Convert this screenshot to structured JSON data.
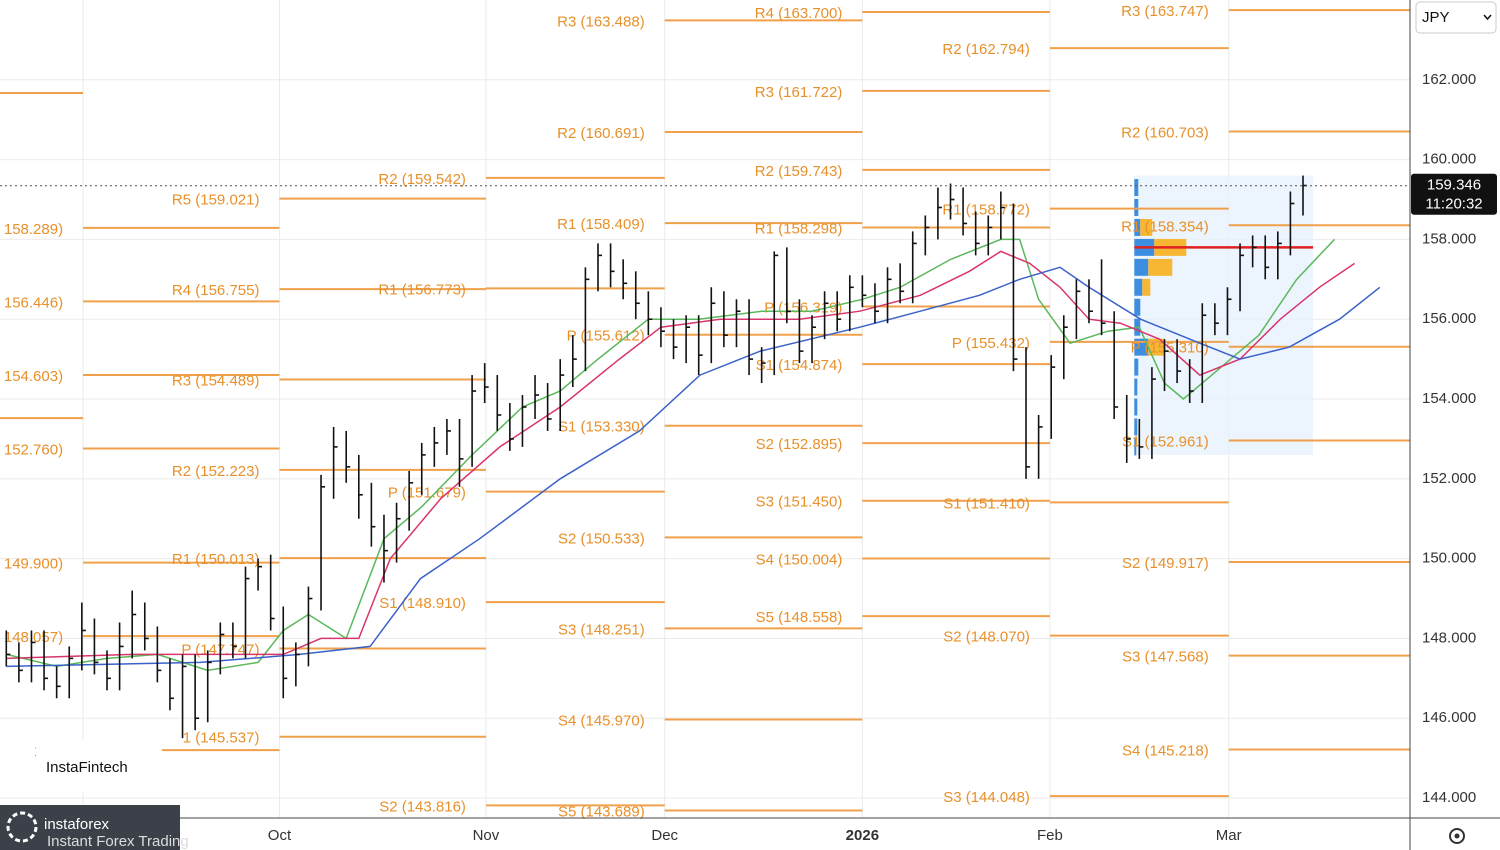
{
  "chart_data": {
    "type": "ohlc",
    "color": "#111111",
    "xlim": [
      -0.5,
      111.5
    ],
    "ylim": [
      143.5,
      164.0
    ],
    "xticks": [
      {
        "value": 6.1,
        "label": null
      },
      {
        "value": 21.7,
        "label": "Oct"
      },
      {
        "value": 38.1,
        "label": "Nov"
      },
      {
        "value": 52.3,
        "label": "Dec"
      },
      {
        "value": 68.0,
        "label": "2026"
      },
      {
        "value": 82.9,
        "label": "Feb"
      },
      {
        "value": 97.1,
        "label": "Mar"
      }
    ],
    "yticks": [
      {
        "value": 144,
        "label": "144.000"
      },
      {
        "value": 146,
        "label": "146.000"
      },
      {
        "value": 148,
        "label": "148.000"
      },
      {
        "value": 150,
        "label": "150.000"
      },
      {
        "value": 152,
        "label": "152.000"
      },
      {
        "value": 154,
        "label": "154.000"
      },
      {
        "value": 156,
        "label": "156.000"
      },
      {
        "value": 158,
        "label": "158.000"
      },
      {
        "value": 160,
        "label": "160.000"
      },
      {
        "value": 162,
        "label": "162.000"
      }
    ],
    "grid": true,
    "high": [
      148.2,
      147.9,
      148.2,
      148.2,
      147.3,
      147.8,
      148.9,
      148.5,
      147.7,
      148.4,
      149.2,
      148.9,
      148.3,
      147.5,
      147.6,
      147.6,
      147.7,
      148.4,
      148.4,
      149.8,
      150.0,
      150.1,
      148.8,
      147.9,
      149.3,
      152.1,
      153.3,
      153.2,
      152.6,
      151.9,
      151.1,
      151.4,
      152.2,
      152.9,
      153.3,
      153.5,
      153.5,
      154.6,
      154.9,
      154.6,
      153.9,
      154.1,
      154.6,
      154.4,
      155.0,
      155.6,
      157.3,
      157.9,
      157.9,
      157.5,
      157.2,
      156.7,
      156.3,
      156.0,
      156.1,
      156.1,
      156.8,
      156.7,
      156.5,
      156.5,
      155.3,
      157.7,
      157.8,
      156.5,
      156.1,
      156.7,
      156.7,
      157.1,
      157.1,
      156.9,
      157.3,
      157.4,
      158.2,
      158.6,
      159.3,
      159.4,
      159.3,
      158.7,
      158.6,
      159.2,
      158.9,
      155.3,
      153.6,
      155.1,
      156.1,
      157.0,
      157.0,
      157.5,
      156.2,
      154.1,
      153.5,
      154.8,
      155.5,
      155.5,
      155.0,
      156.4,
      156.4,
      156.8,
      157.9,
      158.1,
      158.1,
      158.2,
      159.2,
      159.6
    ],
    "low": [
      147.3,
      146.9,
      146.9,
      146.7,
      146.5,
      146.5,
      147.2,
      147.1,
      146.7,
      146.7,
      147.5,
      147.7,
      146.9,
      146.2,
      145.5,
      145.7,
      145.9,
      147.1,
      147.5,
      147.5,
      149.2,
      148.2,
      146.5,
      146.8,
      147.3,
      148.7,
      151.5,
      151.9,
      151.0,
      150.3,
      149.4,
      149.9,
      150.7,
      151.6,
      152.3,
      152.6,
      151.8,
      152.3,
      153.9,
      153.2,
      152.7,
      152.8,
      153.5,
      153.2,
      153.2,
      154.3,
      154.7,
      156.7,
      156.8,
      156.5,
      156.0,
      155.6,
      155.3,
      155.0,
      154.9,
      154.6,
      154.9,
      155.3,
      155.3,
      154.6,
      154.4,
      154.6,
      155.9,
      154.9,
      154.9,
      155.5,
      155.7,
      155.7,
      156.3,
      155.9,
      155.9,
      156.4,
      156.4,
      157.6,
      158.0,
      158.5,
      158.1,
      157.6,
      157.6,
      158.0,
      154.7,
      152.0,
      152.0,
      153.0,
      154.5,
      155.5,
      155.9,
      155.6,
      153.5,
      152.4,
      152.5,
      152.5,
      154.2,
      154.4,
      153.9,
      153.9,
      155.6,
      155.6,
      156.2,
      157.3,
      157.0,
      157.0,
      157.6,
      158.6
    ],
    "close": [
      147.6,
      147.2,
      147.9,
      147.0,
      146.8,
      147.5,
      148.2,
      147.4,
      147.0,
      147.8,
      148.6,
      148.0,
      147.2,
      146.5,
      147.3,
      146.0,
      147.4,
      148.1,
      147.8,
      149.5,
      149.8,
      148.5,
      147.0,
      147.6,
      149.0,
      151.8,
      152.8,
      152.3,
      151.6,
      150.8,
      150.2,
      151.0,
      151.9,
      152.6,
      152.9,
      153.2,
      152.5,
      154.2,
      154.3,
      153.6,
      153.0,
      153.8,
      154.1,
      153.5,
      154.6,
      155.0,
      157.0,
      157.6,
      157.2,
      156.9,
      156.4,
      156.0,
      155.7,
      155.3,
      155.8,
      155.1,
      156.4,
      155.6,
      156.2,
      155.0,
      154.9,
      157.6,
      156.2,
      155.2,
      155.8,
      156.4,
      156.0,
      156.8,
      156.6,
      156.2,
      157.0,
      156.7,
      157.9,
      158.3,
      158.8,
      159.0,
      158.4,
      157.9,
      158.3,
      158.8,
      155.0,
      152.3,
      153.3,
      154.8,
      155.8,
      156.7,
      156.2,
      155.9,
      153.8,
      153.0,
      152.8,
      154.5,
      155.2,
      154.7,
      154.2,
      156.1,
      155.9,
      156.5,
      157.6,
      157.8,
      157.3,
      157.9,
      158.9,
      159.35
    ],
    "series": [
      {
        "color": "#5cb85c",
        "x": [
          0,
          4,
          8,
          12,
          16,
          20,
          22,
          24,
          27,
          30,
          33,
          37,
          41,
          44,
          47,
          51,
          55,
          60,
          64,
          68,
          71,
          75,
          79,
          80.5,
          82,
          84.5,
          87.5,
          90,
          92,
          93.5,
          96.5,
          99.5,
          102.5,
          105.5
        ],
        "values": [
          147.6,
          147.3,
          147.5,
          147.6,
          147.2,
          147.4,
          148.2,
          148.6,
          148.0,
          150.5,
          151.3,
          152.6,
          153.8,
          154.2,
          155.0,
          156.0,
          156.0,
          156.2,
          156.2,
          156.5,
          156.8,
          157.5,
          158.0,
          158.0,
          156.5,
          155.4,
          155.7,
          155.8,
          154.4,
          154.0,
          154.8,
          155.6,
          157.0,
          158.0
        ]
      },
      {
        "color": "#d9356b",
        "x": [
          0,
          10,
          22,
          25,
          28,
          30.5,
          34.5,
          39.2,
          44,
          48.7,
          52,
          56.7,
          63,
          67.8,
          72.6,
          76.5,
          79,
          81.3,
          83.7,
          86,
          88.5,
          91.6,
          94.8,
          98,
          101.2,
          104.3,
          107.1
        ],
        "values": [
          147.5,
          147.6,
          147.6,
          148.0,
          148.0,
          150.0,
          151.5,
          152.8,
          153.8,
          155.0,
          155.8,
          156.0,
          156.0,
          156.2,
          156.6,
          157.2,
          157.7,
          157.4,
          156.8,
          156.0,
          155.9,
          155.5,
          154.6,
          155.0,
          156.0,
          156.8,
          157.4
        ]
      },
      {
        "color": "#3b62c9",
        "x": [
          0,
          15.4,
          23.3,
          28.9,
          32.9,
          37.6,
          44,
          50.3,
          55.1,
          59.9,
          67.8,
          72.6,
          77.3,
          80.5,
          83.7,
          86,
          90.1,
          94.8,
          98,
          101.9,
          105.9,
          109.1
        ],
        "values": [
          147.3,
          147.4,
          147.6,
          147.8,
          149.5,
          150.5,
          152.0,
          153.2,
          154.6,
          155.2,
          155.8,
          156.2,
          156.6,
          157.0,
          157.3,
          156.8,
          156.0,
          155.4,
          155.0,
          155.3,
          156.0,
          156.8
        ]
      }
    ],
    "pivot_color": "#f0a04b",
    "pivot_label_color": "#e8902a",
    "pivots": [
      {
        "x": [
          -0.5,
          6.1
        ],
        "levels": [
          {
            "label": null,
            "value": 161.67
          },
          {
            "label": null,
            "value": 153.52
          }
        ]
      },
      {
        "x": [
          6.1,
          21.7
        ],
        "levels": [
          {
            "label": "158.289)",
            "value": 158.289
          },
          {
            "label": "156.446)",
            "value": 156.446
          },
          {
            "label": "154.603)",
            "value": 154.603
          },
          {
            "label": "152.760)",
            "value": 152.76
          },
          {
            "label": "149.900)",
            "value": 149.9
          },
          {
            "label": "148.057)",
            "value": 148.057
          },
          {
            "label": "145.",
            "value": 145.2
          }
        ]
      },
      {
        "x": [
          21.7,
          38.1
        ],
        "levels": [
          {
            "label": "R5 (159.021)",
            "value": 159.021
          },
          {
            "label": "R4 (156.755)",
            "value": 156.755
          },
          {
            "label": "R3 (154.489)",
            "value": 154.489
          },
          {
            "label": "R2 (152.223)",
            "value": 152.223
          },
          {
            "label": "R1 (150.013)",
            "value": 150.013
          },
          {
            "label": "P (147.747)",
            "value": 147.747
          },
          {
            "label": "1 (145.537)",
            "value": 145.537
          }
        ]
      },
      {
        "x": [
          38.1,
          52.3
        ],
        "levels": [
          {
            "label": "R2 (159.542)",
            "value": 159.542
          },
          {
            "label": "R1 (156.773)",
            "value": 156.773
          },
          {
            "label": "P (151.679)",
            "value": 151.679
          },
          {
            "label": "S1 (148.910)",
            "value": 148.91
          },
          {
            "label": "S2 (143.816)",
            "value": 143.816
          }
        ]
      },
      {
        "x": [
          52.3,
          68.0
        ],
        "levels": [
          {
            "label": "R3 (163.488)",
            "value": 163.488
          },
          {
            "label": "R2 (160.691)",
            "value": 160.691
          },
          {
            "label": "R1 (158.409)",
            "value": 158.409
          },
          {
            "label": "P (155.612)",
            "value": 155.612
          },
          {
            "label": "S1 (153.330)",
            "value": 153.33
          },
          {
            "label": "S2 (150.533)",
            "value": 150.533
          },
          {
            "label": "S3 (148.251)",
            "value": 148.251
          },
          {
            "label": "S4 (145.970)",
            "value": 145.97
          },
          {
            "label": "S5 (143.689)",
            "value": 143.689
          }
        ]
      },
      {
        "x": [
          68.0,
          82.9
        ],
        "levels": [
          {
            "label": "R4 (163.700)",
            "value": 163.7
          },
          {
            "label": "R3 (161.722)",
            "value": 161.722
          },
          {
            "label": "R2 (159.743)",
            "value": 159.743
          },
          {
            "label": "R1 (158.298)",
            "value": 158.298
          },
          {
            "label": "P (156.319)",
            "value": 156.319
          },
          {
            "label": "S1 (154.874)",
            "value": 154.874
          },
          {
            "label": "S2 (152.895)",
            "value": 152.895
          },
          {
            "label": "S3 (151.450)",
            "value": 151.45
          },
          {
            "label": "S4 (150.004)",
            "value": 150.004
          },
          {
            "label": "S5 (148.558)",
            "value": 148.558
          }
        ]
      },
      {
        "x": [
          82.9,
          97.1
        ],
        "levels": [
          {
            "label": "R2 (162.794)",
            "value": 162.794
          },
          {
            "label": "R1 (158.772)",
            "value": 158.772
          },
          {
            "label": "P (155.432)",
            "value": 155.432
          },
          {
            "label": "S1 (151.410)",
            "value": 151.41
          },
          {
            "label": "S2 (148.070)",
            "value": 148.07
          },
          {
            "label": "S3 (144.048)",
            "value": 144.048
          }
        ]
      },
      {
        "x": [
          97.1,
          111.5
        ],
        "levels": [
          {
            "label": "R3 (163.747)",
            "value": 163.747
          },
          {
            "label": "R2 (160.703)",
            "value": 160.703
          },
          {
            "label": "R1 (158.354)",
            "value": 158.354
          },
          {
            "label": "P (155.310)",
            "value": 155.31
          },
          {
            "label": "S1 (152.961)",
            "value": 152.961
          },
          {
            "label": "S2 (149.917)",
            "value": 149.917
          },
          {
            "label": "S3 (147.568)",
            "value": 147.568
          },
          {
            "label": "S4 (145.218)",
            "value": 145.218
          }
        ]
      }
    ],
    "volume_profile": {
      "x": [
        89.6,
        103.8
      ],
      "ylim": [
        152.6,
        159.6
      ],
      "poc": 157.8,
      "poc_color": "#e02020",
      "buy_color": "#3d8de0",
      "sell_color": "#f7b733",
      "prices": [
        159.3,
        158.8,
        158.3,
        157.8,
        157.3,
        156.8,
        156.3,
        155.8,
        155.3,
        154.8,
        154.3,
        153.8,
        153.3,
        152.8
      ],
      "buy": [
        4,
        4,
        6,
        20,
        14,
        8,
        6,
        6,
        14,
        4,
        3,
        3,
        3,
        2
      ],
      "sell": [
        0,
        0,
        12,
        32,
        24,
        8,
        0,
        0,
        16,
        0,
        0,
        0,
        0,
        0
      ]
    },
    "last_price": {
      "value": 159.346,
      "label": "159.346"
    },
    "timer": "11:20:32"
  },
  "ui": {
    "symbol": "JPY",
    "watermark": "InstaFintech",
    "logo": "instaforex",
    "logo_tagline": "Instant Forex Trading"
  }
}
